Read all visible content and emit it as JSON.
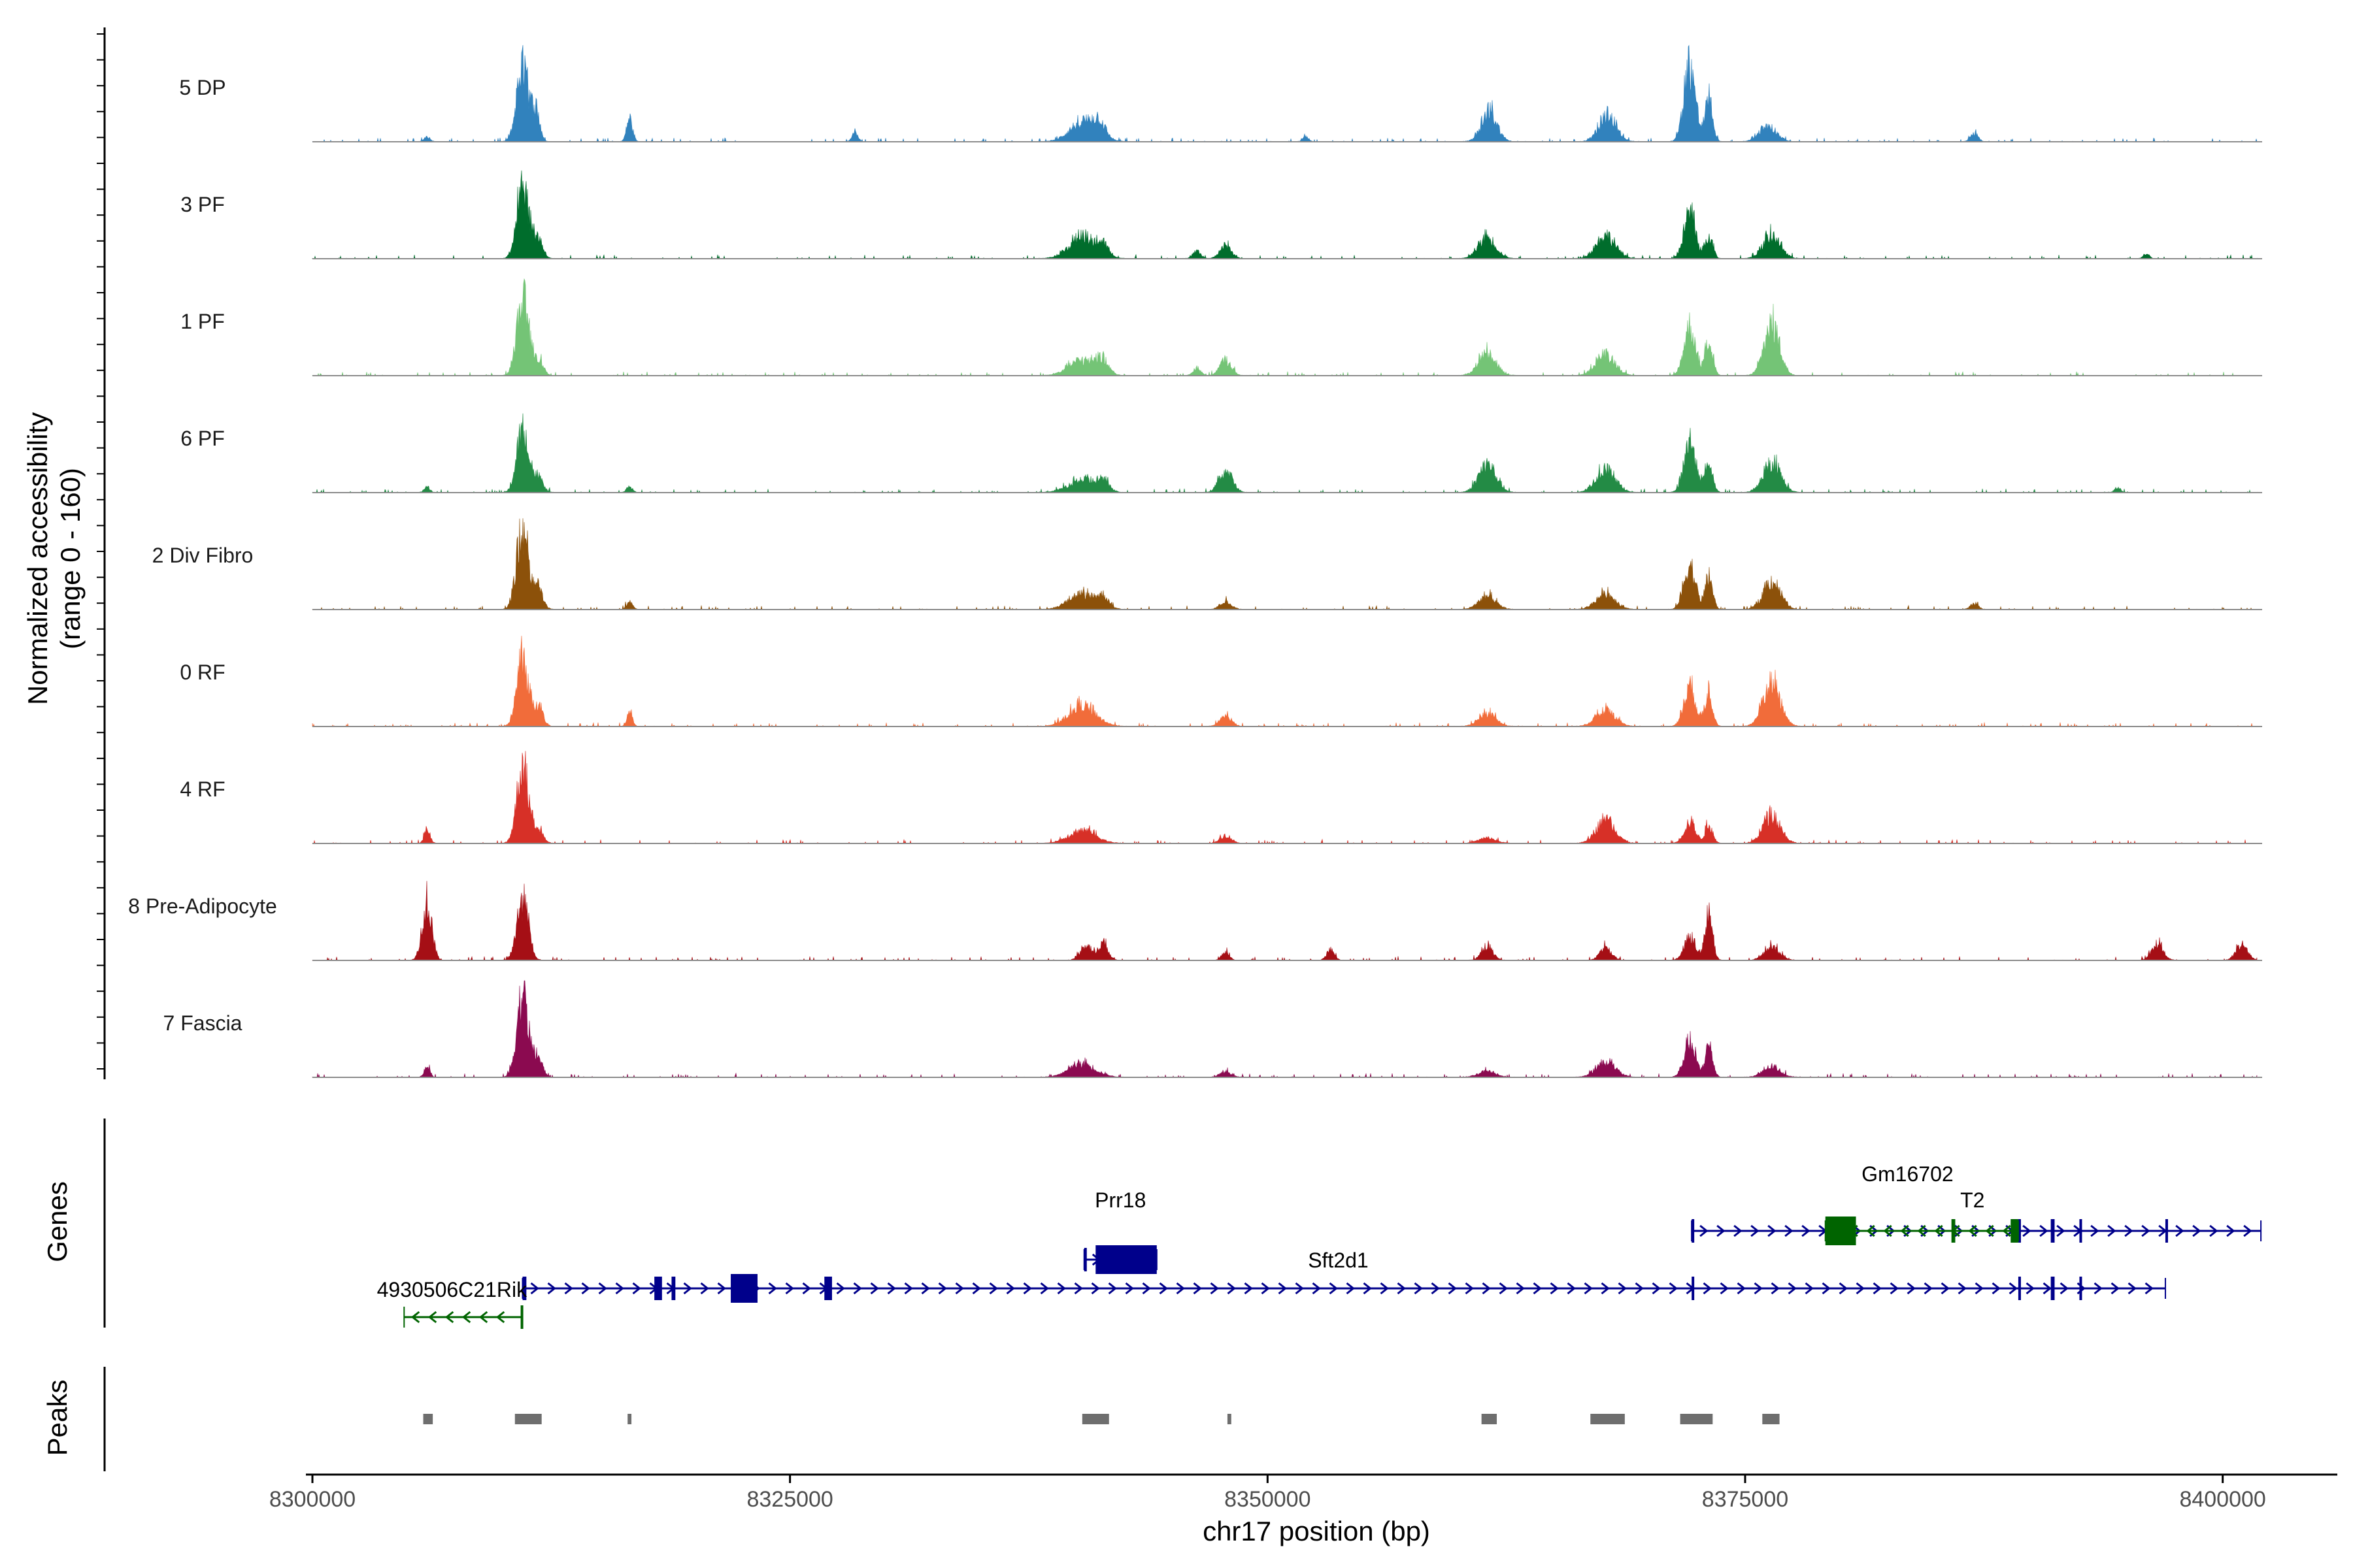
{
  "chart_data": {
    "type": "coverage",
    "ylabel": "Normalized accessibility",
    "ylabel_range": "(range 0 - 160)",
    "xlabel": "chr17 position (bp)",
    "xlim": [
      8300000,
      8406000
    ],
    "ylim": [
      0,
      160
    ],
    "x_ticks": [
      8300000,
      8325000,
      8350000,
      8375000,
      8400000
    ],
    "x_tick_labels": [
      "8300000",
      "8325000",
      "8350000",
      "8375000",
      "8400000"
    ],
    "coverage_extent": [
      8300000,
      8401800
    ],
    "tracks": [
      {
        "name": "5 DP",
        "color": "#3182bd",
        "peaks": [
          [
            8306000,
            10,
            150
          ],
          [
            8311000,
            150,
            300
          ],
          [
            8311700,
            60,
            200
          ],
          [
            8316600,
            45,
            150
          ],
          [
            8328400,
            18,
            150
          ],
          [
            8340400,
            40,
            700
          ],
          [
            8341200,
            25,
            300
          ],
          [
            8352000,
            10,
            150
          ],
          [
            8361600,
            60,
            400
          ],
          [
            8367800,
            50,
            450
          ],
          [
            8372100,
            150,
            300
          ],
          [
            8373100,
            80,
            200
          ],
          [
            8376200,
            30,
            450
          ],
          [
            8387000,
            15,
            200
          ]
        ]
      },
      {
        "name": "3 PF",
        "color": "#006d2c",
        "peaks": [
          [
            8311000,
            150,
            300
          ],
          [
            8311800,
            40,
            250
          ],
          [
            8340300,
            40,
            700
          ],
          [
            8341400,
            20,
            300
          ],
          [
            8346300,
            15,
            200
          ],
          [
            8347800,
            25,
            300
          ],
          [
            8361500,
            40,
            450
          ],
          [
            8367700,
            45,
            500
          ],
          [
            8372100,
            90,
            300
          ],
          [
            8373100,
            45,
            200
          ],
          [
            8376400,
            45,
            450
          ],
          [
            8396000,
            10,
            150
          ]
        ]
      },
      {
        "name": "1 PF",
        "color": "#74c476",
        "peaks": [
          [
            8311000,
            150,
            300
          ],
          [
            8311800,
            35,
            250
          ],
          [
            8340300,
            30,
            700
          ],
          [
            8341400,
            25,
            300
          ],
          [
            8346300,
            15,
            200
          ],
          [
            8347800,
            30,
            300
          ],
          [
            8361500,
            45,
            450
          ],
          [
            8367700,
            40,
            500
          ],
          [
            8372100,
            95,
            300
          ],
          [
            8373100,
            70,
            200
          ],
          [
            8376400,
            100,
            400
          ]
        ]
      },
      {
        "name": "6 PF",
        "color": "#238b45",
        "peaks": [
          [
            8306000,
            10,
            150
          ],
          [
            8311000,
            120,
            300
          ],
          [
            8311800,
            30,
            250
          ],
          [
            8316600,
            12,
            150
          ],
          [
            8340300,
            25,
            700
          ],
          [
            8341400,
            20,
            300
          ],
          [
            8347800,
            40,
            350
          ],
          [
            8361500,
            55,
            450
          ],
          [
            8367700,
            45,
            500
          ],
          [
            8372100,
            100,
            300
          ],
          [
            8373100,
            60,
            200
          ],
          [
            8376400,
            60,
            450
          ],
          [
            8394500,
            10,
            150
          ]
        ]
      },
      {
        "name": "2 Div Fibro",
        "color": "#8c510a",
        "peaks": [
          [
            8311000,
            160,
            300
          ],
          [
            8311800,
            40,
            250
          ],
          [
            8316600,
            15,
            150
          ],
          [
            8340300,
            30,
            700
          ],
          [
            8341400,
            20,
            300
          ],
          [
            8347800,
            15,
            300
          ],
          [
            8361500,
            25,
            450
          ],
          [
            8367700,
            30,
            500
          ],
          [
            8372100,
            85,
            300
          ],
          [
            8373100,
            60,
            200
          ],
          [
            8376400,
            55,
            450
          ],
          [
            8387000,
            12,
            200
          ]
        ]
      },
      {
        "name": "0 RF",
        "color": "#f16c3a",
        "peaks": [
          [
            8311000,
            130,
            300
          ],
          [
            8311800,
            40,
            250
          ],
          [
            8316600,
            25,
            150
          ],
          [
            8340300,
            40,
            700
          ],
          [
            8347800,
            20,
            300
          ],
          [
            8361500,
            25,
            450
          ],
          [
            8367700,
            30,
            500
          ],
          [
            8372100,
            80,
            300
          ],
          [
            8373100,
            65,
            200
          ],
          [
            8376400,
            85,
            450
          ]
        ]
      },
      {
        "name": "4 RF",
        "color": "#d73027",
        "peaks": [
          [
            8306000,
            25,
            150
          ],
          [
            8311000,
            150,
            300
          ],
          [
            8311800,
            30,
            250
          ],
          [
            8340300,
            25,
            700
          ],
          [
            8347800,
            15,
            300
          ],
          [
            8361500,
            10,
            450
          ],
          [
            8367700,
            45,
            500
          ],
          [
            8372100,
            40,
            300
          ],
          [
            8373100,
            35,
            200
          ],
          [
            8376400,
            55,
            450
          ]
        ]
      },
      {
        "name": "8 Pre-Adipocyte",
        "color": "#a50f15",
        "peaks": [
          [
            8306000,
            110,
            250
          ],
          [
            8311000,
            115,
            300
          ],
          [
            8340500,
            30,
            300
          ],
          [
            8341400,
            35,
            250
          ],
          [
            8347800,
            15,
            200
          ],
          [
            8353300,
            20,
            200
          ],
          [
            8361500,
            25,
            300
          ],
          [
            8367700,
            25,
            300
          ],
          [
            8372100,
            45,
            300
          ],
          [
            8373100,
            90,
            200
          ],
          [
            8376400,
            25,
            400
          ],
          [
            8396600,
            30,
            300
          ],
          [
            8401000,
            30,
            300
          ]
        ]
      },
      {
        "name": "7 Fascia",
        "color": "#8b0a50",
        "peaks": [
          [
            8306000,
            20,
            150
          ],
          [
            8311000,
            160,
            300
          ],
          [
            8311800,
            35,
            250
          ],
          [
            8340300,
            25,
            700
          ],
          [
            8347800,
            10,
            300
          ],
          [
            8361500,
            12,
            450
          ],
          [
            8367700,
            30,
            500
          ],
          [
            8372100,
            65,
            300
          ],
          [
            8373100,
            60,
            200
          ],
          [
            8376400,
            20,
            450
          ]
        ]
      }
    ],
    "gene_panel_label": "Genes",
    "genes": [
      {
        "name": "4930506C21Rik",
        "strand": "-",
        "start": 8304800,
        "end": 8311000,
        "row": 3,
        "color": "#006400",
        "exons": [
          [
            8310900,
            8311000
          ]
        ]
      },
      {
        "name": "Sft2d1",
        "strand": "+",
        "start": 8311000,
        "end": 8397000,
        "row": 2,
        "color": "#00008b",
        "exons": [
          [
            8311000,
            8311200
          ],
          [
            8317900,
            8318300
          ],
          [
            8318800,
            8319000
          ],
          [
            8321900,
            8323300
          ],
          [
            8326800,
            8327200
          ],
          [
            8372200,
            8372300
          ],
          [
            8389300,
            8389400
          ],
          [
            8391000,
            8391200
          ],
          [
            8392500,
            8392600
          ]
        ]
      },
      {
        "name": "Sft2d1",
        "strand": "+",
        "start": 8372200,
        "end": 8402000,
        "row": 0,
        "color": "#00008b",
        "exons": [
          [
            8372200,
            8372300
          ],
          [
            8389300,
            8389400
          ],
          [
            8391000,
            8391200
          ],
          [
            8392500,
            8392600
          ],
          [
            8397000,
            8397100
          ]
        ]
      },
      {
        "name": "Prr18",
        "strand": "+",
        "start": 8340400,
        "end": 8344200,
        "row": 1,
        "color": "#00008b",
        "exons": [
          [
            8340400,
            8340500
          ],
          [
            8341000,
            8344200
          ]
        ]
      },
      {
        "name": "Gm16702",
        "strand": "-",
        "start": 8379200,
        "end": 8389300,
        "row": 0,
        "color": "#006400",
        "exons": [
          [
            8379200,
            8380800
          ],
          [
            8385800,
            8386000
          ],
          [
            8388900,
            8389300
          ]
        ]
      }
    ],
    "gene_labels": [
      {
        "text": "4930506C21Rik",
        "x": 8307300,
        "row": 2
      },
      {
        "text": "Sft2d1",
        "x": 8353700,
        "row": 1
      },
      {
        "text": "Prr18",
        "x": 8342300,
        "row": 0
      },
      {
        "text": "Gm16702",
        "x": 8383500,
        "row": -1
      },
      {
        "text": "T2",
        "x": 8386900,
        "row": 0
      }
    ],
    "peaks_panel_label": "Peaks",
    "peak_regions": [
      [
        8305800,
        8306300
      ],
      [
        8310600,
        8312000
      ],
      [
        8316500,
        8316700
      ],
      [
        8340300,
        8341700
      ],
      [
        8347900,
        8348100
      ],
      [
        8361200,
        8362000
      ],
      [
        8366900,
        8368700
      ],
      [
        8371600,
        8373300
      ],
      [
        8375900,
        8376800
      ]
    ]
  }
}
